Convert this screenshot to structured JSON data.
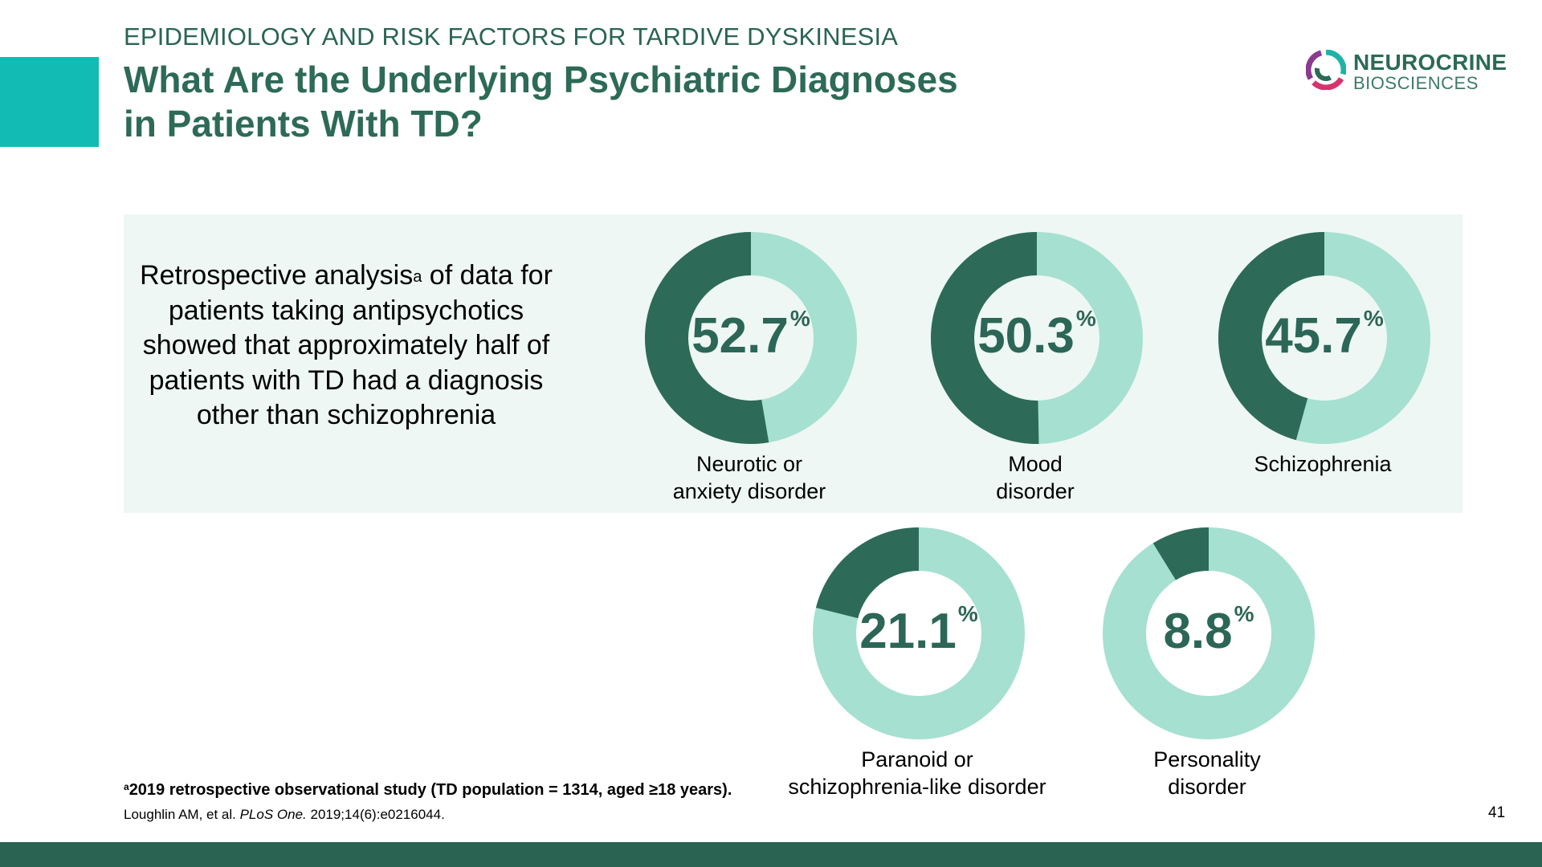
{
  "header": {
    "kicker": "EPIDEMIOLOGY AND RISK FACTORS FOR TARDIVE DYSKINESIA",
    "title_line1": "What Are the Underlying Psychiatric Diagnoses",
    "title_line2": "in Patients With TD?"
  },
  "logo": {
    "brand": "NEUROCRINE",
    "sub": "BIOSCIENCES"
  },
  "panel": {
    "text_before_sup": "Retrospective analysis",
    "sup": "a",
    "text_after_sup": " of data for patients taking antipsychotics showed that approximately half of patients with TD had a diagnosis other than schizophrenia"
  },
  "chart_data": {
    "type": "pie",
    "unit": "%",
    "categories": [
      "Neurotic or anxiety disorder",
      "Mood disorder",
      "Schizophrenia",
      "Paranoid or schizophrenia-like disorder",
      "Personality disorder"
    ],
    "values": [
      52.7,
      50.3,
      45.7,
      21.1,
      8.8
    ],
    "value_labels": [
      "52.7",
      "50.3",
      "45.7",
      "21.1",
      "8.8"
    ],
    "label_lines": [
      [
        "Neurotic or",
        "anxiety disorder"
      ],
      [
        "Mood",
        "disorder"
      ],
      [
        "Schizophrenia"
      ],
      [
        "Paranoid or",
        "schizophrenia-like disorder"
      ],
      [
        "Personality",
        "disorder"
      ]
    ],
    "colors": {
      "filled": "#2e6a58",
      "remainder": "#a6e0d0"
    }
  },
  "footer": {
    "footnote_sup": "a",
    "footnote": "2019 retrospective observational study (TD population = 1314, aged ≥18 years).",
    "ref_authors": "Loughlin AM, et al. ",
    "ref_journal": "PLoS One.",
    "ref_rest": " 2019;14(6):e0216044.",
    "page_number": "41"
  }
}
